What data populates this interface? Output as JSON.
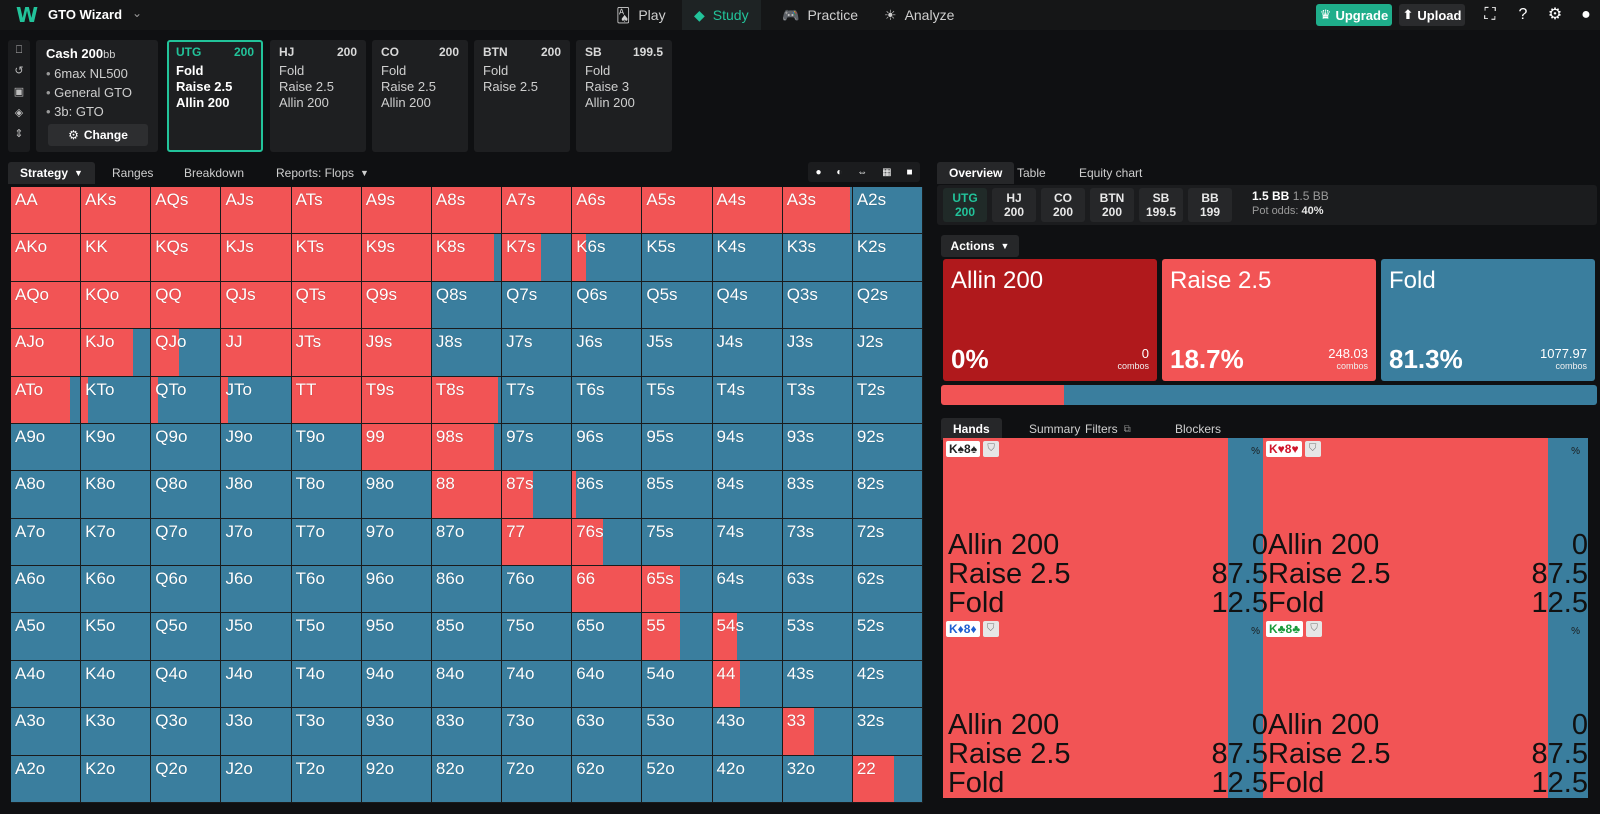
{
  "app": {
    "brand": "GTO Wizard",
    "nav": [
      {
        "label": "Play",
        "icon": "cards-icon"
      },
      {
        "label": "Study",
        "icon": "study-icon",
        "active": true
      },
      {
        "label": "Practice",
        "icon": "gamepad-icon"
      },
      {
        "label": "Analyze",
        "icon": "bulb-icon"
      }
    ],
    "upgrade_label": "Upgrade",
    "upload_label": "Upload"
  },
  "spot": {
    "game": "Cash",
    "stack": "200",
    "stack_unit": "bb",
    "details": [
      "6max NL500",
      "General GTO",
      "3b: GTO"
    ],
    "change_label": "Change"
  },
  "positions": [
    {
      "pos": "UTG",
      "stack": "200",
      "actions": [
        "Fold",
        "Raise 2.5",
        "Allin 200"
      ],
      "active": true
    },
    {
      "pos": "HJ",
      "stack": "200",
      "actions": [
        "Fold",
        "Raise 2.5",
        "Allin 200"
      ]
    },
    {
      "pos": "CO",
      "stack": "200",
      "actions": [
        "Fold",
        "Raise 2.5",
        "Allin 200"
      ]
    },
    {
      "pos": "BTN",
      "stack": "200",
      "actions": [
        "Fold",
        "Raise 2.5"
      ]
    },
    {
      "pos": "SB",
      "stack": "199.5",
      "actions": [
        "Fold",
        "Raise 3",
        "Allin 200"
      ]
    }
  ],
  "left_tabs": {
    "strategy": "Strategy",
    "ranges": "Ranges",
    "breakdown": "Breakdown",
    "reports": "Reports: Flops"
  },
  "right_tabs": {
    "overview": "Overview",
    "table": "Table",
    "equity": "Equity chart"
  },
  "seats": [
    {
      "pos": "UTG",
      "stack": "200",
      "active": true
    },
    {
      "pos": "HJ",
      "stack": "200"
    },
    {
      "pos": "CO",
      "stack": "200"
    },
    {
      "pos": "BTN",
      "stack": "200"
    },
    {
      "pos": "SB",
      "stack": "199.5"
    },
    {
      "pos": "BB",
      "stack": "199"
    }
  ],
  "pot": {
    "value": "1.5 BB",
    "secondary": "1.5 BB",
    "odds_label": "Pot odds:",
    "odds_value": "40%"
  },
  "actions_label": "Actions",
  "actions": [
    {
      "name": "Allin 200",
      "pct": "0%",
      "combos": "0",
      "combos_label": "combos",
      "color": "#b0191c",
      "freq": 0
    },
    {
      "name": "Raise 2.5",
      "pct": "18.7%",
      "combos": "248.03",
      "combos_label": "combos",
      "color": "#f25455",
      "freq": 18.7
    },
    {
      "name": "Fold",
      "pct": "81.3%",
      "combos": "1077.97",
      "combos_label": "combos",
      "color": "#3a7e9e",
      "freq": 81.3
    }
  ],
  "colors": {
    "raise": "#f25455",
    "fold": "#3a7e9e",
    "allin": "#b0191c",
    "accent": "#22c39a"
  },
  "hand_tabs": {
    "hands": "Hands",
    "summary": "Summary",
    "filters": "Filters",
    "blockers": "Blockers"
  },
  "hands": [
    {
      "cards": "K♠8♠",
      "suit_color": "#222222",
      "rows": [
        [
          "Allin 200",
          "0"
        ],
        [
          "Raise 2.5",
          "87.5"
        ],
        [
          "Fold",
          "12.5"
        ]
      ]
    },
    {
      "cards": "K♥8♥",
      "suit_color": "#d0162b",
      "rows": [
        [
          "Allin 200",
          "0"
        ],
        [
          "Raise 2.5",
          "87.5"
        ],
        [
          "Fold",
          "12.5"
        ]
      ]
    },
    {
      "cards": "K♦8♦",
      "suit_color": "#1f5fd0",
      "rows": [
        [
          "Allin 200",
          "0"
        ],
        [
          "Raise 2.5",
          "87.5"
        ],
        [
          "Fold",
          "12.5"
        ]
      ]
    },
    {
      "cards": "K♣8♣",
      "suit_color": "#1a9b3c",
      "rows": [
        [
          "Allin 200",
          "0"
        ],
        [
          "Raise 2.5",
          "87.5"
        ],
        [
          "Fold",
          "12.5"
        ]
      ]
    }
  ],
  "hand_pct_symbol": "%",
  "matrix": {
    "labels": [
      [
        "AA",
        "AKs",
        "AQs",
        "AJs",
        "ATs",
        "A9s",
        "A8s",
        "A7s",
        "A6s",
        "A5s",
        "A4s",
        "A3s",
        "A2s"
      ],
      [
        "AKo",
        "KK",
        "KQs",
        "KJs",
        "KTs",
        "K9s",
        "K8s",
        "K7s",
        "K6s",
        "K5s",
        "K4s",
        "K3s",
        "K2s"
      ],
      [
        "AQo",
        "KQo",
        "QQ",
        "QJs",
        "QTs",
        "Q9s",
        "Q8s",
        "Q7s",
        "Q6s",
        "Q5s",
        "Q4s",
        "Q3s",
        "Q2s"
      ],
      [
        "AJo",
        "KJo",
        "QJo",
        "JJ",
        "JTs",
        "J9s",
        "J8s",
        "J7s",
        "J6s",
        "J5s",
        "J4s",
        "J3s",
        "J2s"
      ],
      [
        "ATo",
        "KTo",
        "QTo",
        "JTo",
        "TT",
        "T9s",
        "T8s",
        "T7s",
        "T6s",
        "T5s",
        "T4s",
        "T3s",
        "T2s"
      ],
      [
        "A9o",
        "K9o",
        "Q9o",
        "J9o",
        "T9o",
        "99",
        "98s",
        "97s",
        "96s",
        "95s",
        "94s",
        "93s",
        "92s"
      ],
      [
        "A8o",
        "K8o",
        "Q8o",
        "J8o",
        "T8o",
        "98o",
        "88",
        "87s",
        "86s",
        "85s",
        "84s",
        "83s",
        "82s"
      ],
      [
        "A7o",
        "K7o",
        "Q7o",
        "J7o",
        "T7o",
        "97o",
        "87o",
        "77",
        "76s",
        "75s",
        "74s",
        "73s",
        "72s"
      ],
      [
        "A6o",
        "K6o",
        "Q6o",
        "J6o",
        "T6o",
        "96o",
        "86o",
        "76o",
        "66",
        "65s",
        "64s",
        "63s",
        "62s"
      ],
      [
        "A5o",
        "K5o",
        "Q5o",
        "J5o",
        "T5o",
        "95o",
        "85o",
        "75o",
        "65o",
        "55",
        "54s",
        "53s",
        "52s"
      ],
      [
        "A4o",
        "K4o",
        "Q4o",
        "J4o",
        "T4o",
        "94o",
        "84o",
        "74o",
        "64o",
        "54o",
        "44",
        "43s",
        "42s"
      ],
      [
        "A3o",
        "K3o",
        "Q3o",
        "J3o",
        "T3o",
        "93o",
        "83o",
        "73o",
        "63o",
        "53o",
        "43o",
        "33",
        "32s"
      ],
      [
        "A2o",
        "K2o",
        "Q2o",
        "J2o",
        "T2o",
        "92o",
        "82o",
        "72o",
        "62o",
        "52o",
        "42o",
        "32o",
        "22"
      ]
    ],
    "raise_freq": [
      [
        1,
        1,
        1,
        1,
        1,
        1,
        1,
        1,
        1,
        1,
        1,
        0.97,
        0
      ],
      [
        1,
        1,
        1,
        1,
        1,
        1,
        0.9,
        0.57,
        0.2,
        0,
        0,
        0,
        0
      ],
      [
        1,
        1,
        1,
        1,
        1,
        1,
        0,
        0,
        0,
        0,
        0,
        0,
        0
      ],
      [
        1,
        0.75,
        0.4,
        1,
        1,
        1,
        0,
        0,
        0,
        0,
        0,
        0,
        0
      ],
      [
        0.85,
        0.1,
        0.1,
        0.1,
        1,
        1,
        0.95,
        0,
        0,
        0,
        0,
        0,
        0
      ],
      [
        0,
        0,
        0,
        0,
        0,
        1,
        0.9,
        0,
        0,
        0,
        0,
        0,
        0
      ],
      [
        0,
        0,
        0,
        0,
        0,
        0,
        1,
        0.45,
        0.05,
        0,
        0,
        0,
        0
      ],
      [
        0,
        0,
        0,
        0,
        0,
        0,
        0,
        1,
        0.45,
        0,
        0,
        0,
        0
      ],
      [
        0,
        0,
        0,
        0,
        0,
        0,
        0,
        0,
        1,
        0.55,
        0,
        0,
        0
      ],
      [
        0,
        0,
        0,
        0,
        0,
        0,
        0,
        0,
        0,
        0.55,
        0.35,
        0,
        0
      ],
      [
        0,
        0,
        0,
        0,
        0,
        0,
        0,
        0,
        0,
        0,
        0.4,
        0,
        0
      ],
      [
        0,
        0,
        0,
        0,
        0,
        0,
        0,
        0,
        0,
        0,
        0,
        0.45,
        0
      ],
      [
        0,
        0,
        0,
        0,
        0,
        0,
        0,
        0,
        0,
        0,
        0,
        0,
        0.6
      ]
    ]
  }
}
